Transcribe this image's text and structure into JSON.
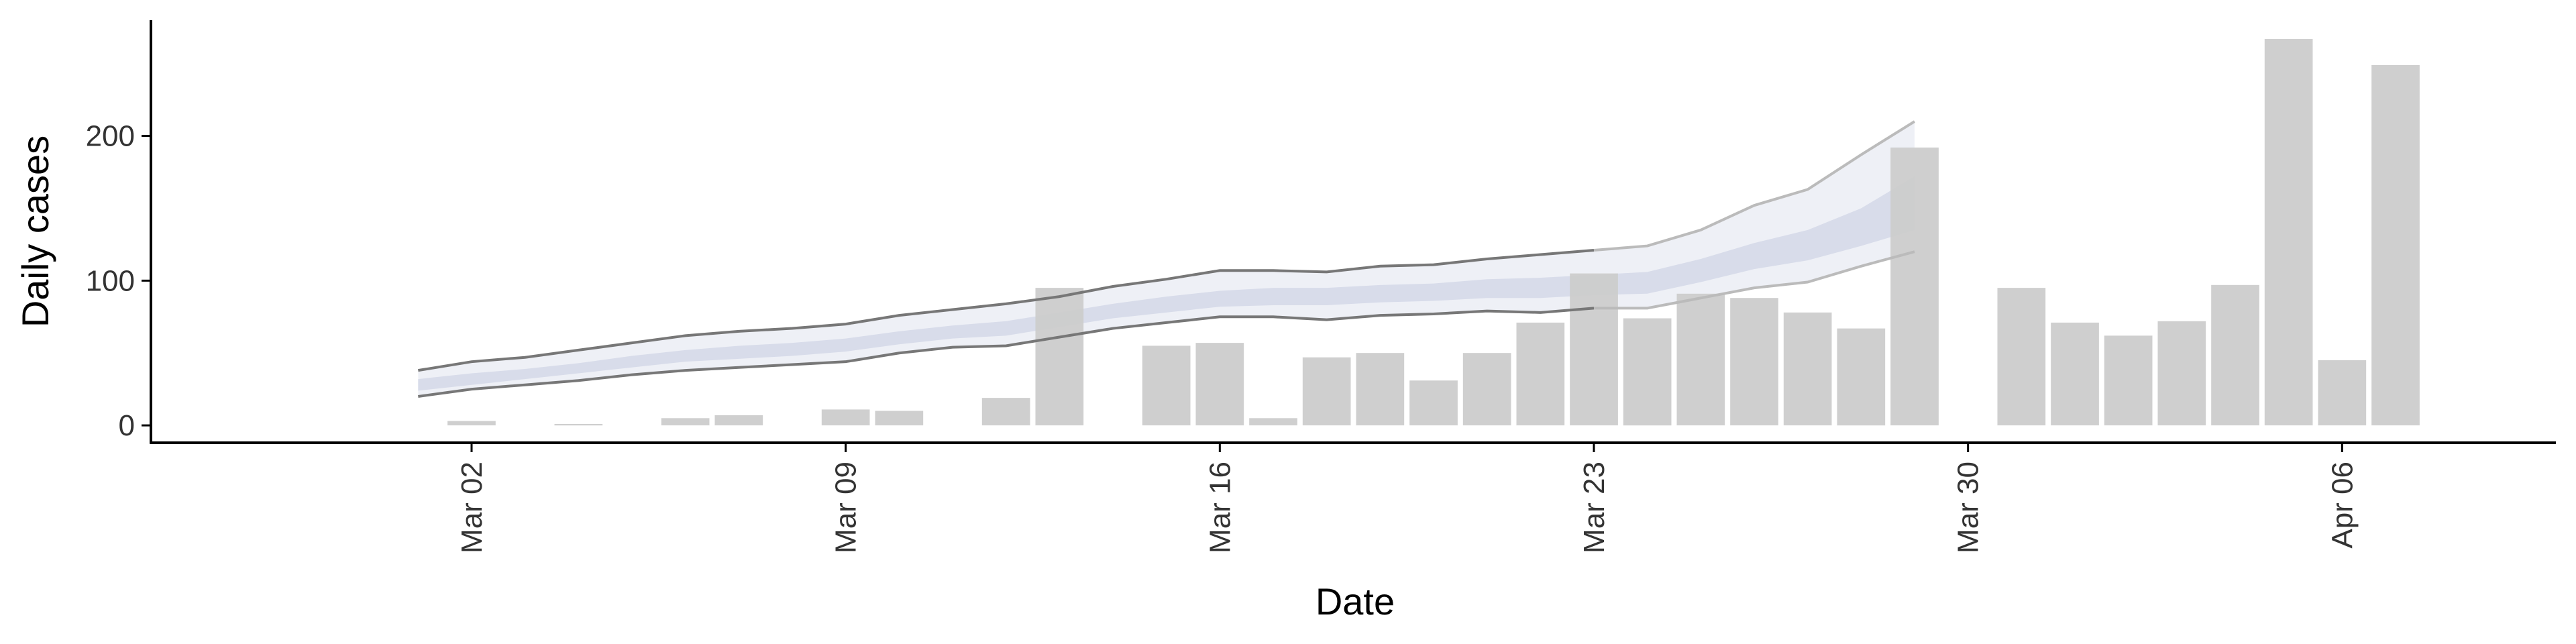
{
  "chart_data": {
    "type": "bar",
    "xlabel": "Date",
    "ylabel": "Daily cases",
    "x_tick_labels": [
      "Mar 02",
      "Mar 09",
      "Mar 16",
      "Mar 23",
      "Mar 30",
      "Apr 06"
    ],
    "x_tick_dates": [
      "2020-03-02",
      "2020-03-09",
      "2020-03-16",
      "2020-03-23",
      "2020-03-30",
      "2020-04-06"
    ],
    "y_tick_labels": [
      "0",
      "100",
      "200"
    ],
    "y_tick_values": [
      0,
      100,
      200
    ],
    "xlim": [
      "2020-02-25",
      "2020-04-10"
    ],
    "ylim": [
      -12,
      280
    ],
    "grid": false,
    "colors": {
      "bars": "#cccccc",
      "band_outer": "#eef0f6",
      "band_inner": "#d8dcea",
      "bounds_line": "#777777",
      "axis": "#000000"
    },
    "bars": [
      {
        "date": "2020-03-02",
        "value": 3
      },
      {
        "date": "2020-03-04",
        "value": 1
      },
      {
        "date": "2020-03-06",
        "value": 5
      },
      {
        "date": "2020-03-07",
        "value": 7
      },
      {
        "date": "2020-03-09",
        "value": 11
      },
      {
        "date": "2020-03-10",
        "value": 10
      },
      {
        "date": "2020-03-12",
        "value": 19
      },
      {
        "date": "2020-03-13",
        "value": 95
      },
      {
        "date": "2020-03-15",
        "value": 55
      },
      {
        "date": "2020-03-16",
        "value": 57
      },
      {
        "date": "2020-03-17",
        "value": 5
      },
      {
        "date": "2020-03-18",
        "value": 47
      },
      {
        "date": "2020-03-19",
        "value": 50
      },
      {
        "date": "2020-03-20",
        "value": 31
      },
      {
        "date": "2020-03-21",
        "value": 50
      },
      {
        "date": "2020-03-22",
        "value": 71
      },
      {
        "date": "2020-03-23",
        "value": 105
      },
      {
        "date": "2020-03-24",
        "value": 74
      },
      {
        "date": "2020-03-25",
        "value": 91
      },
      {
        "date": "2020-03-26",
        "value": 88
      },
      {
        "date": "2020-03-27",
        "value": 78
      },
      {
        "date": "2020-03-28",
        "value": 67
      },
      {
        "date": "2020-03-29",
        "value": 192
      },
      {
        "date": "2020-03-31",
        "value": 95
      },
      {
        "date": "2020-04-01",
        "value": 71
      },
      {
        "date": "2020-04-02",
        "value": 62
      },
      {
        "date": "2020-04-03",
        "value": 72
      },
      {
        "date": "2020-04-04",
        "value": 97
      },
      {
        "date": "2020-04-05",
        "value": 267
      },
      {
        "date": "2020-04-06",
        "value": 45
      },
      {
        "date": "2020-04-07",
        "value": 249
      }
    ],
    "band": [
      {
        "date": "2020-03-01",
        "outer_low": 20,
        "inner_low": 24,
        "inner_high": 32,
        "outer_high": 38
      },
      {
        "date": "2020-03-02",
        "outer_low": 25,
        "inner_low": 28,
        "inner_high": 36,
        "outer_high": 44
      },
      {
        "date": "2020-03-03",
        "outer_low": 28,
        "inner_low": 32,
        "inner_high": 39,
        "outer_high": 47
      },
      {
        "date": "2020-03-04",
        "outer_low": 31,
        "inner_low": 36,
        "inner_high": 43,
        "outer_high": 52
      },
      {
        "date": "2020-03-05",
        "outer_low": 35,
        "inner_low": 40,
        "inner_high": 48,
        "outer_high": 57
      },
      {
        "date": "2020-03-06",
        "outer_low": 38,
        "inner_low": 44,
        "inner_high": 52,
        "outer_high": 62
      },
      {
        "date": "2020-03-07",
        "outer_low": 40,
        "inner_low": 46,
        "inner_high": 55,
        "outer_high": 65
      },
      {
        "date": "2020-03-08",
        "outer_low": 42,
        "inner_low": 48,
        "inner_high": 57,
        "outer_high": 67
      },
      {
        "date": "2020-03-09",
        "outer_low": 44,
        "inner_low": 51,
        "inner_high": 60,
        "outer_high": 70
      },
      {
        "date": "2020-03-10",
        "outer_low": 50,
        "inner_low": 56,
        "inner_high": 65,
        "outer_high": 76
      },
      {
        "date": "2020-03-11",
        "outer_low": 54,
        "inner_low": 60,
        "inner_high": 69,
        "outer_high": 80
      },
      {
        "date": "2020-03-12",
        "outer_low": 55,
        "inner_low": 62,
        "inner_high": 72,
        "outer_high": 84
      },
      {
        "date": "2020-03-13",
        "outer_low": 61,
        "inner_low": 68,
        "inner_high": 78,
        "outer_high": 89
      },
      {
        "date": "2020-03-14",
        "outer_low": 67,
        "inner_low": 74,
        "inner_high": 84,
        "outer_high": 96
      },
      {
        "date": "2020-03-15",
        "outer_low": 71,
        "inner_low": 78,
        "inner_high": 89,
        "outer_high": 101
      },
      {
        "date": "2020-03-16",
        "outer_low": 75,
        "inner_low": 82,
        "inner_high": 93,
        "outer_high": 107
      },
      {
        "date": "2020-03-17",
        "outer_low": 75,
        "inner_low": 83,
        "inner_high": 95,
        "outer_high": 107
      },
      {
        "date": "2020-03-18",
        "outer_low": 73,
        "inner_low": 83,
        "inner_high": 95,
        "outer_high": 106
      },
      {
        "date": "2020-03-19",
        "outer_low": 76,
        "inner_low": 85,
        "inner_high": 97,
        "outer_high": 110
      },
      {
        "date": "2020-03-20",
        "outer_low": 77,
        "inner_low": 86,
        "inner_high": 98,
        "outer_high": 111
      },
      {
        "date": "2020-03-21",
        "outer_low": 79,
        "inner_low": 88,
        "inner_high": 101,
        "outer_high": 115
      },
      {
        "date": "2020-03-22",
        "outer_low": 78,
        "inner_low": 88,
        "inner_high": 102,
        "outer_high": 118
      },
      {
        "date": "2020-03-23",
        "outer_low": 81,
        "inner_low": 90,
        "inner_high": 104,
        "outer_high": 121
      },
      {
        "date": "2020-03-24",
        "outer_low": 81,
        "inner_low": 91,
        "inner_high": 106,
        "outer_high": 124
      },
      {
        "date": "2020-03-25",
        "outer_low": 88,
        "inner_low": 99,
        "inner_high": 115,
        "outer_high": 135
      },
      {
        "date": "2020-03-26",
        "outer_low": 95,
        "inner_low": 108,
        "inner_high": 126,
        "outer_high": 152
      },
      {
        "date": "2020-03-27",
        "outer_low": 99,
        "inner_low": 114,
        "inner_high": 135,
        "outer_high": 163
      },
      {
        "date": "2020-03-28",
        "outer_low": 110,
        "inner_low": 124,
        "inner_high": 150,
        "outer_high": 187
      },
      {
        "date": "2020-03-29",
        "outer_low": 120,
        "inner_low": 135,
        "inner_high": 172,
        "outer_high": 210
      }
    ]
  }
}
